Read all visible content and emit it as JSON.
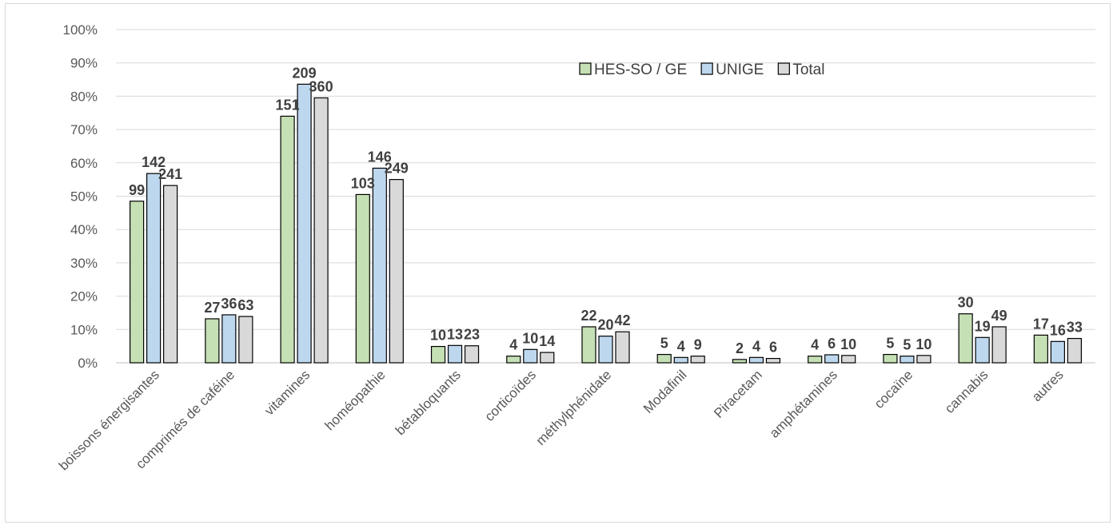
{
  "chart_data": {
    "type": "bar",
    "title": "",
    "xlabel": "",
    "ylabel": "",
    "ylim": [
      0,
      100
    ],
    "y_ticks": [
      "0%",
      "10%",
      "20%",
      "30%",
      "40%",
      "50%",
      "60%",
      "70%",
      "80%",
      "90%",
      "100%"
    ],
    "y_unit": "%",
    "grid": true,
    "legend_position": "top-right",
    "categories": [
      "boissons énergisantes",
      "comprimés de caféine",
      "vitamines",
      "homéopathie",
      "bétabloquants",
      "corticoïdes",
      "méthylphénidate",
      "Modafinil",
      "Piracetam",
      "amphétamines",
      "cocaïne",
      "cannabis",
      "autres"
    ],
    "series": [
      {
        "name": "HES-SO / GE",
        "color": "#c5e0b4",
        "values": [
          48.5,
          13.2,
          74.0,
          50.5,
          4.9,
          2.0,
          10.8,
          2.5,
          1.0,
          2.0,
          2.5,
          14.7,
          8.3
        ],
        "labels": [
          "99",
          "27",
          "151",
          "103",
          "10",
          "4",
          "22",
          "5",
          "2",
          "4",
          "5",
          "30",
          "17"
        ]
      },
      {
        "name": "UNIGE",
        "color": "#bdd7ee",
        "values": [
          56.8,
          14.4,
          83.6,
          58.4,
          5.2,
          4.0,
          8.0,
          1.6,
          1.6,
          2.4,
          2.0,
          7.6,
          6.4
        ],
        "labels": [
          "142",
          "36",
          "209",
          "146",
          "13",
          "10",
          "20",
          "4",
          "4",
          "6",
          "5",
          "19",
          "16"
        ]
      },
      {
        "name": "Total",
        "color": "#d9d9d9",
        "values": [
          53.2,
          13.9,
          79.5,
          55.0,
          5.1,
          3.1,
          9.3,
          2.0,
          1.3,
          2.2,
          2.2,
          10.8,
          7.3
        ],
        "labels": [
          "241",
          "63",
          "360",
          "249",
          "23",
          "14",
          "42",
          "9",
          "6",
          "10",
          "10",
          "49",
          "33"
        ]
      }
    ]
  }
}
